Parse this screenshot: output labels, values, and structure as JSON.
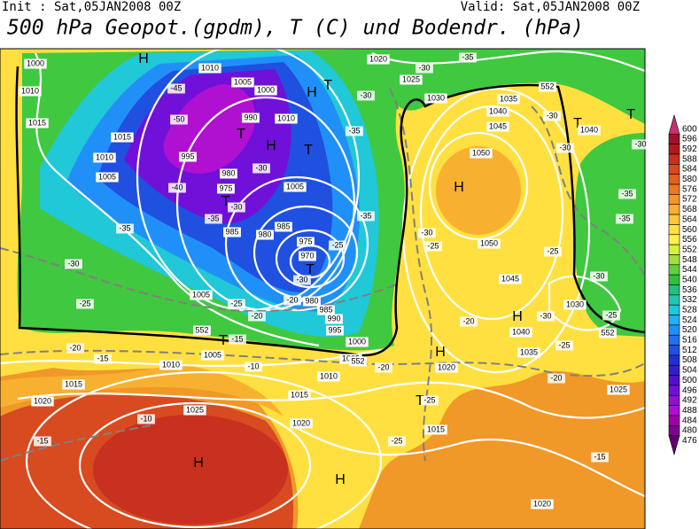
{
  "header": {
    "init": "Init : Sat,05JAN2008 00Z",
    "valid": "Valid: Sat,05JAN2008 00Z",
    "title": "500 hPa Geopot.(gpdm), T (C) und Bodendr. (hPa)"
  },
  "colorbar": {
    "levels": [
      600,
      596,
      592,
      588,
      584,
      580,
      576,
      572,
      568,
      564,
      560,
      556,
      552,
      548,
      544,
      540,
      536,
      532,
      528,
      524,
      520,
      516,
      512,
      508,
      504,
      500,
      496,
      492,
      488,
      484,
      480,
      476
    ],
    "colors": [
      "#c8306e",
      "#a0102a",
      "#b01a1a",
      "#c83020",
      "#d84a20",
      "#e06020",
      "#e87a20",
      "#f09828",
      "#f8b030",
      "#fcc838",
      "#ffe040",
      "#fff050",
      "#d8f040",
      "#a0e040",
      "#60d040",
      "#30c040",
      "#20c080",
      "#20c8b0",
      "#20c8d8",
      "#20b0f0",
      "#2090f8",
      "#2070f0",
      "#2050e0",
      "#2030d0",
      "#3020c8",
      "#5010d0",
      "#7010d8",
      "#9010d8",
      "#b010d0",
      "#a000a8",
      "#800090",
      "#600070"
    ]
  },
  "map": {
    "labels": [
      "H",
      "H",
      "T",
      "T",
      "H",
      "T",
      "T",
      "T",
      "H",
      "T",
      "T",
      "H",
      "H",
      "T",
      "T",
      "H",
      "H",
      "1000",
      "1010",
      "1015",
      "1015",
      "1010",
      "1005",
      "995",
      "990",
      "1000",
      "1005",
      "1010",
      "1010",
      "980",
      "975",
      "985",
      "980",
      "985",
      "1005",
      "975",
      "970",
      "980",
      "985",
      "990",
      "995",
      "1000",
      "1005",
      "1010",
      "1015",
      "1020",
      "1025",
      "1020",
      "1015",
      "1010",
      "1005",
      "1005",
      "1020",
      "1025",
      "1030",
      "1035",
      "1040",
      "1045",
      "1050",
      "1050",
      "1045",
      "1040",
      "1035",
      "1030",
      "1040",
      "1020",
      "1015",
      "1025",
      "1020",
      "-45",
      "-50",
      "-40",
      "-35",
      "-30",
      "-30",
      "-35",
      "-30",
      "-25",
      "-25",
      "-20",
      "-20",
      "-25",
      "-30",
      "-15",
      "-10",
      "-20",
      "-15",
      "-30",
      "-35",
      "-30",
      "-35",
      "-35",
      "-30",
      "-25",
      "-30",
      "-30",
      "-25",
      "-30",
      "-35",
      "-35",
      "-30",
      "-25",
      "-30",
      "-25",
      "-20",
      "-20",
      "-20",
      "-25",
      "-25",
      "-10",
      "-15",
      "-15",
      "552",
      "552",
      "552",
      "552"
    ]
  }
}
